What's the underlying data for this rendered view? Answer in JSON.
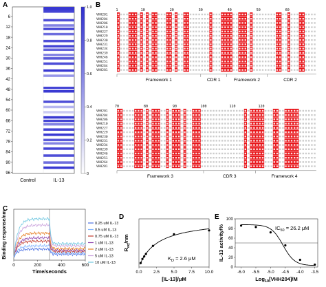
{
  "panels": {
    "a": "A",
    "b": "B",
    "c": "C",
    "d": "D",
    "e": "E"
  },
  "colors": {
    "heat_high": "#2f2fd0",
    "heat_low": "#ffffff",
    "align_red": "#e8161b",
    "align_text": "#1a1a1a"
  },
  "chart_data": [
    {
      "panel": "A",
      "type": "heatmap",
      "columns": [
        "Control",
        "IL-13"
      ],
      "yticks": [
        6,
        12,
        18,
        24,
        30,
        36,
        42,
        48,
        54,
        60,
        66,
        72,
        78,
        84,
        90,
        96
      ],
      "ylim": [
        1,
        96
      ],
      "colorbar": {
        "range": [
          0,
          1.0
        ],
        "ticks": [
          "0",
          "0.2",
          "0.4",
          "0.6",
          "0.8",
          "1.0"
        ]
      },
      "rows_il13": [
        {
          "row": 1,
          "value": 0.95
        },
        {
          "row": 2,
          "value": 0.95
        },
        {
          "row": 3,
          "value": 0.9
        },
        {
          "row": 8,
          "value": 0.85
        },
        {
          "row": 11,
          "value": 0.6
        },
        {
          "row": 13,
          "value": 0.9
        },
        {
          "row": 16,
          "value": 0.7
        },
        {
          "row": 20,
          "value": 0.85
        },
        {
          "row": 23,
          "value": 0.9
        },
        {
          "row": 25,
          "value": 0.75
        },
        {
          "row": 28,
          "value": 0.6
        },
        {
          "row": 30,
          "value": 0.8
        },
        {
          "row": 33,
          "value": 0.85
        },
        {
          "row": 37,
          "value": 0.95
        },
        {
          "row": 40,
          "value": 0.5
        },
        {
          "row": 47,
          "value": 0.9
        },
        {
          "row": 49,
          "value": 0.95
        },
        {
          "row": 55,
          "value": 0.85
        },
        {
          "row": 58,
          "value": 0.35
        },
        {
          "row": 61,
          "value": 0.25
        },
        {
          "row": 64,
          "value": 0.95
        },
        {
          "row": 66,
          "value": 0.9
        },
        {
          "row": 68,
          "value": 0.6
        },
        {
          "row": 71,
          "value": 0.9
        },
        {
          "row": 74,
          "value": 0.95
        },
        {
          "row": 77,
          "value": 0.8
        },
        {
          "row": 79,
          "value": 0.6
        },
        {
          "row": 82,
          "value": 0.9
        },
        {
          "row": 86,
          "value": 0.85
        },
        {
          "row": 90,
          "value": 0.7
        },
        {
          "row": 93,
          "value": 0.95
        }
      ]
    },
    {
      "panel": "B",
      "type": "table",
      "top_ruler": [
        "1",
        "10",
        "20",
        "30",
        "40",
        "50",
        "60"
      ],
      "bottom_ruler": [
        "70",
        "80",
        "90",
        "100",
        "110",
        "120"
      ],
      "row_names": [
        "VHH201",
        "VHH204",
        "VHH206",
        "VHH210",
        "VHH227",
        "VHH229",
        "VHH230",
        "VHH231",
        "VHH234",
        "VHH239",
        "VHH246",
        "VHH251",
        "VHH264",
        "VHH281"
      ],
      "top_regions": [
        "Framework 1",
        "CDR 1",
        "Framework 2",
        "CDR 2"
      ],
      "bottom_regions": [
        "Framework 3",
        "CDR 3",
        "Framework 4"
      ]
    },
    {
      "panel": "C",
      "type": "line",
      "xlabel": "Time/seconds",
      "ylabel": "Binding response/nm",
      "xticks": [
        "0",
        "200",
        "400",
        "600"
      ],
      "xlim": [
        0,
        600
      ],
      "ylim": [
        -0.02,
        0.3
      ],
      "series": [
        {
          "name": "0.25 uM IL-13",
          "color": "#4a6fe3",
          "plateau": 0.05
        },
        {
          "name": "0.5 uM IL-13",
          "color": "#7fb3ff",
          "plateau": 0.07
        },
        {
          "name": "0.75 uM IL-13",
          "color": "#c0392b",
          "plateau": 0.1
        },
        {
          "name": "1 uM IL-13",
          "color": "#8e44ad",
          "plateau": 0.12
        },
        {
          "name": "2 uM IL-13",
          "color": "#e67e22",
          "plateau": 0.15
        },
        {
          "name": "5 uM IL-13",
          "color": "#c9a0dc",
          "plateau": 0.2
        },
        {
          "name": "10 uM IL-13",
          "color": "#6dc6e0",
          "plateau": 0.24
        }
      ]
    },
    {
      "panel": "D",
      "type": "scatter",
      "xlabel": "[IL-13]/μM",
      "ylabel": "R",
      "ylabel_sub": "eq",
      "ylabel_unit": "/nm",
      "xticks": [
        "0.0",
        "2.5",
        "5.0",
        "7.5",
        "10.0"
      ],
      "xlim": [
        0,
        10
      ],
      "ylim": [
        0,
        0.25
      ],
      "annotation_main": "K",
      "annotation_sub": "D",
      "annotation_rest": " = 2.6 μM",
      "kd": 2.6,
      "rmax": 0.25,
      "points": [
        [
          0.25,
          0.021
        ],
        [
          0.5,
          0.042
        ],
        [
          0.75,
          0.055
        ],
        [
          1,
          0.068
        ],
        [
          2,
          0.11
        ],
        [
          5,
          0.17
        ],
        [
          10,
          0.19
        ]
      ]
    },
    {
      "panel": "E",
      "type": "line",
      "xlabel_pre": "Log",
      "xlabel_sub": "10",
      "xlabel_post": "[VHH204]/M",
      "ylabel": "IL-13 activity/%",
      "xticks": [
        "-6.0",
        "-5.5",
        "-5.0",
        "-4.5",
        "-4.0",
        "-3.5"
      ],
      "yticks": [
        "0",
        "20",
        "40",
        "60",
        "80",
        "100"
      ],
      "xlim": [
        -6.2,
        -3.4
      ],
      "ylim": [
        0,
        100
      ],
      "annotation_main": "IC",
      "annotation_sub": "50",
      "annotation_rest": " = 26.2 μM",
      "log_ic50": -4.58,
      "reference_line": 50,
      "points": [
        [
          -6.0,
          86
        ],
        [
          -5.5,
          83
        ],
        [
          -5.0,
          72
        ],
        [
          -4.5,
          45
        ],
        [
          -4.0,
          15
        ],
        [
          -3.5,
          5
        ]
      ]
    }
  ]
}
